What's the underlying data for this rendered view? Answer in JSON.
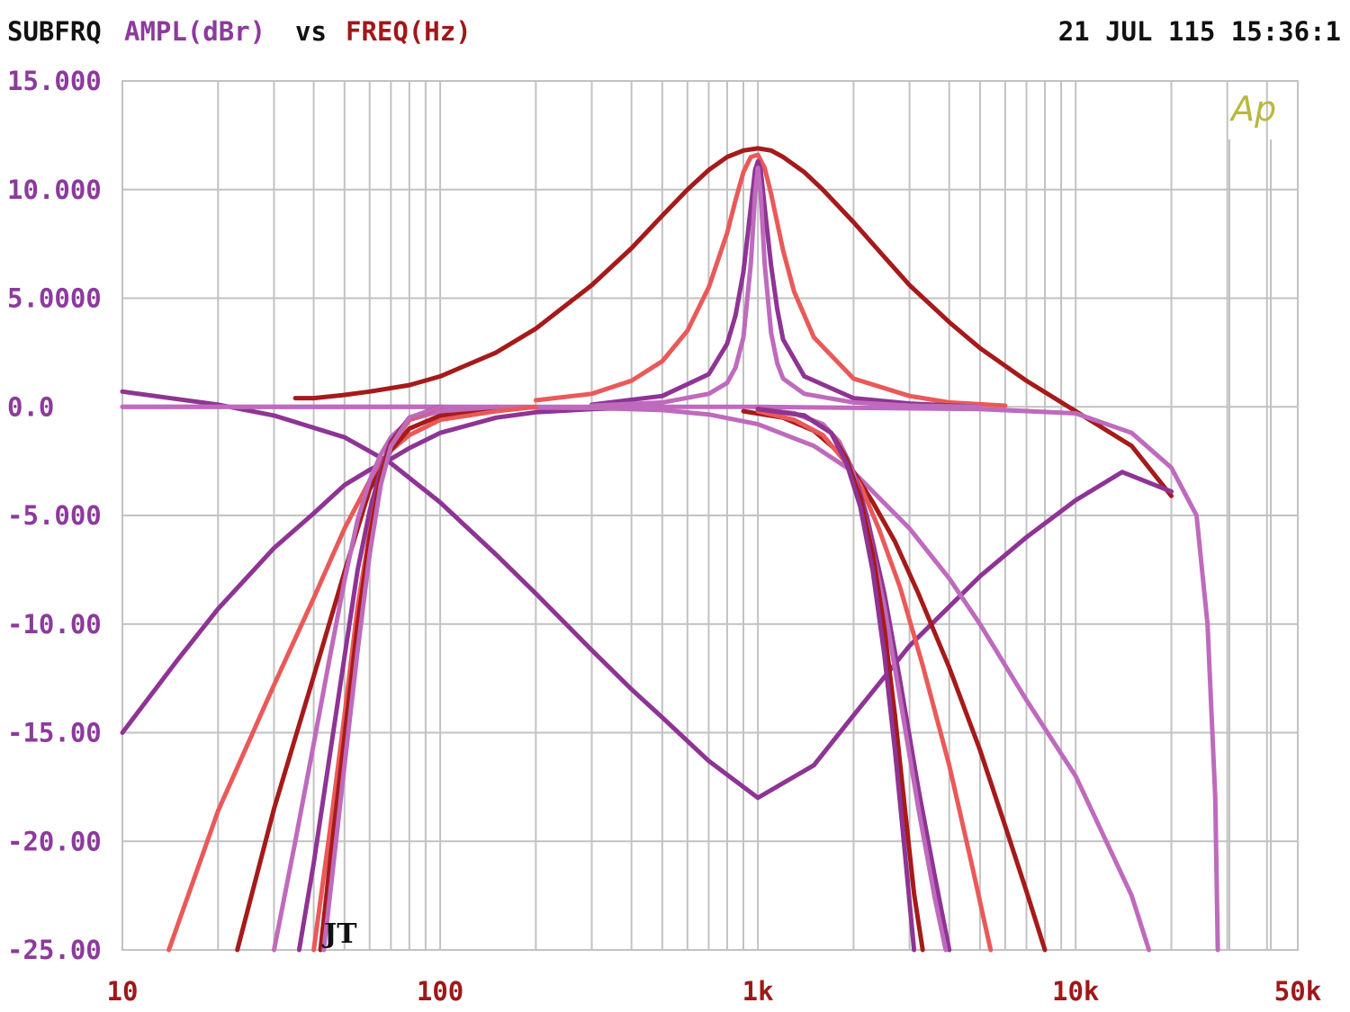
{
  "header": {
    "program": "SUBFRQ",
    "y_quantity": "AMPL(dBr)",
    "vs": "vs",
    "x_quantity": "FREQ(Hz)",
    "timestamp": "21 JUL 115 15:36:1"
  },
  "logo_text": "Ap",
  "cursor_mark": "JT",
  "colors": {
    "y_axis_text": "#8c3a9c",
    "x_axis_text": "#a01818",
    "grid": "#c2c2c2",
    "logo": "#b8b840"
  },
  "chart_data": {
    "type": "line",
    "title": "SUBFRQ AMPL(dBr) vs FREQ(Hz)",
    "xlabel": "FREQ(Hz)",
    "ylabel": "AMPL(dBr)",
    "x_scale": "log",
    "xlim": [
      10,
      50000
    ],
    "ylim": [
      -25,
      15
    ],
    "grid": true,
    "y_ticks": [
      {
        "value": 15,
        "label": "15.000"
      },
      {
        "value": 10,
        "label": "10.000"
      },
      {
        "value": 5,
        "label": "5.0000"
      },
      {
        "value": 0,
        "label": "0.0"
      },
      {
        "value": -5,
        "label": "-5.000"
      },
      {
        "value": -10,
        "label": "-10.00"
      },
      {
        "value": -15,
        "label": "-15.00"
      },
      {
        "value": -20,
        "label": "-20.00"
      },
      {
        "value": -25,
        "label": "-25.00"
      }
    ],
    "x_ticks": [
      {
        "value": 10,
        "label": "10"
      },
      {
        "value": 100,
        "label": "100"
      },
      {
        "value": 1000,
        "label": "1k"
      },
      {
        "value": 10000,
        "label": "10k"
      },
      {
        "value": 50000,
        "label": "50k"
      }
    ],
    "series": [
      {
        "color": "#a51a1a",
        "x": [
          35,
          40,
          50,
          60,
          80,
          100,
          150,
          200,
          300,
          400,
          500,
          600,
          700,
          800,
          900,
          1000,
          1100,
          1200,
          1400,
          1600,
          2000,
          2500,
          3000,
          4000,
          5000,
          7000,
          10000,
          15000,
          20000
        ],
        "y": [
          0.4,
          0.4,
          0.55,
          0.7,
          1.0,
          1.4,
          2.5,
          3.6,
          5.6,
          7.3,
          8.8,
          10.0,
          10.9,
          11.5,
          11.8,
          11.9,
          11.8,
          11.5,
          10.8,
          10.0,
          8.5,
          6.9,
          5.6,
          3.9,
          2.7,
          1.2,
          -0.2,
          -1.8,
          -4.1
        ]
      },
      {
        "color": "#ea5959",
        "x": [
          200,
          300,
          400,
          500,
          600,
          700,
          800,
          850,
          900,
          950,
          1000,
          1050,
          1100,
          1200,
          1300,
          1500,
          2000,
          3000,
          4000,
          6000
        ],
        "y": [
          0.3,
          0.6,
          1.2,
          2.1,
          3.5,
          5.5,
          8.0,
          9.5,
          10.8,
          11.5,
          11.6,
          11.0,
          9.8,
          7.2,
          5.3,
          3.2,
          1.3,
          0.5,
          0.2,
          0.05
        ]
      },
      {
        "color": "#8e3494",
        "x": [
          300,
          500,
          700,
          800,
          850,
          900,
          950,
          980,
          1000,
          1020,
          1050,
          1100,
          1150,
          1200,
          1400,
          2000,
          3000,
          5000
        ],
        "y": [
          0.1,
          0.5,
          1.5,
          2.9,
          4.2,
          6.2,
          9.2,
          10.9,
          11.3,
          10.9,
          9.2,
          6.5,
          4.5,
          3.1,
          1.4,
          0.4,
          0.15,
          0.0
        ]
      },
      {
        "color": "#be6abd",
        "x": [
          300,
          500,
          700,
          800,
          850,
          900,
          950,
          980,
          1000,
          1020,
          1050,
          1100,
          1150,
          1200,
          1400,
          2000,
          3000,
          5000
        ],
        "y": [
          0.05,
          0.2,
          0.6,
          1.1,
          1.8,
          3.2,
          6.6,
          9.8,
          11.0,
          9.8,
          6.6,
          3.4,
          2.0,
          1.3,
          0.6,
          0.2,
          0.05,
          0.0
        ]
      },
      {
        "color": "#8e3494",
        "x": [
          10,
          20,
          30,
          50,
          70,
          100,
          150,
          200,
          300,
          400,
          500,
          700,
          1000,
          1500,
          2000,
          3000,
          5000,
          7000,
          10000,
          14000,
          20000
        ],
        "y": [
          0.7,
          0.1,
          -0.4,
          -1.4,
          -2.6,
          -4.4,
          -6.8,
          -8.6,
          -11.2,
          -13.0,
          -14.3,
          -16.3,
          -18.0,
          -16.5,
          -14.2,
          -11.0,
          -7.8,
          -6.0,
          -4.3,
          -3.0,
          -3.9
        ]
      },
      {
        "color": "#8e3494",
        "x": [
          10,
          15,
          20,
          30,
          40,
          50,
          60,
          70,
          80,
          100,
          150,
          200,
          300,
          400,
          500
        ],
        "y": [
          -15.0,
          -11.6,
          -9.3,
          -6.5,
          -4.9,
          -3.6,
          -2.9,
          -2.4,
          -1.9,
          -1.2,
          -0.5,
          -0.25,
          -0.1,
          -0.05,
          0.0
        ]
      },
      {
        "color": "#be6abd",
        "x": [
          10,
          50,
          100,
          300,
          500,
          700,
          1000,
          1500,
          2000,
          3000,
          4000,
          5000,
          7000,
          10000,
          15000,
          17000
        ],
        "y": [
          0.0,
          0.0,
          0.0,
          -0.05,
          -0.15,
          -0.35,
          -0.8,
          -1.8,
          -3.0,
          -5.6,
          -7.9,
          -10.0,
          -13.5,
          -17.0,
          -22.5,
          -25.0
        ]
      },
      {
        "color": "#be6abd",
        "x": [
          10,
          100,
          1000,
          5000,
          10000,
          15000,
          20000,
          24000,
          26000,
          27500,
          28000
        ],
        "y": [
          0.0,
          0.0,
          0.0,
          -0.1,
          -0.3,
          -1.2,
          -2.8,
          -5.0,
          -10.0,
          -18.0,
          -25.0
        ]
      },
      {
        "color": "#ea5959",
        "x": [
          14,
          20,
          30,
          40,
          50,
          60,
          65,
          70,
          80,
          100,
          150,
          200
        ],
        "y": [
          -25.0,
          -18.6,
          -12.8,
          -8.8,
          -5.6,
          -3.4,
          -2.6,
          -2.0,
          -1.3,
          -0.6,
          -0.2,
          0.0
        ]
      },
      {
        "color": "#a51a1a",
        "x": [
          23,
          30,
          40,
          50,
          55,
          60,
          65,
          70,
          80,
          100,
          150
        ],
        "y": [
          -25.0,
          -18.5,
          -12.4,
          -7.6,
          -5.6,
          -3.8,
          -2.9,
          -2.0,
          -1.0,
          -0.4,
          0.0
        ]
      },
      {
        "color": "#be6abd",
        "x": [
          30,
          35,
          40,
          45,
          50,
          55,
          60,
          65,
          70,
          80,
          100,
          150
        ],
        "y": [
          -25.0,
          -20.0,
          -15.5,
          -11.5,
          -8.0,
          -5.2,
          -3.4,
          -2.2,
          -1.4,
          -0.6,
          -0.2,
          0.0
        ]
      },
      {
        "color": "#8e3494",
        "x": [
          36,
          40,
          45,
          50,
          55,
          60,
          65,
          70,
          80,
          100
        ],
        "y": [
          -25.0,
          -21.0,
          -16.0,
          -11.5,
          -7.5,
          -4.8,
          -2.9,
          -1.6,
          -0.5,
          0.0
        ]
      },
      {
        "color": "#ea5959",
        "x": [
          40,
          45,
          50,
          55,
          60,
          65,
          70,
          80,
          100
        ],
        "y": [
          -25.0,
          -19.5,
          -14.2,
          -9.2,
          -5.8,
          -3.2,
          -1.8,
          -0.6,
          0.0
        ]
      },
      {
        "color": "#a51a1a",
        "x": [
          42,
          45,
          50,
          55,
          60,
          65,
          70,
          80,
          100
        ],
        "y": [
          -25.0,
          -21.0,
          -15.2,
          -10.0,
          -6.0,
          -3.2,
          -1.7,
          -0.5,
          0.0
        ]
      },
      {
        "color": "#be6abd",
        "x": [
          43,
          45,
          50,
          55,
          60,
          65,
          70,
          80,
          100
        ],
        "y": [
          -25.0,
          -22.5,
          -16.5,
          -11.2,
          -6.8,
          -3.6,
          -1.8,
          -0.5,
          0.0
        ]
      },
      {
        "color": "#a51a1a",
        "x": [
          900,
          1200,
          1500,
          1800,
          2000,
          2300,
          2700,
          3200,
          4000,
          5000,
          6000,
          7000,
          8000
        ],
        "y": [
          -0.2,
          -0.5,
          -1.1,
          -2.1,
          -3.0,
          -4.4,
          -6.2,
          -8.6,
          -12.0,
          -15.8,
          -19.3,
          -22.3,
          -25.0
        ]
      },
      {
        "color": "#ea5959",
        "x": [
          1000,
          1300,
          1600,
          1900,
          2100,
          2400,
          2800,
          3300,
          4000,
          4700,
          5400
        ],
        "y": [
          -0.2,
          -0.6,
          -1.3,
          -2.6,
          -3.6,
          -5.6,
          -8.3,
          -11.9,
          -16.5,
          -21.0,
          -25.0
        ]
      },
      {
        "color": "#8e3494",
        "x": [
          1000,
          1300,
          1600,
          1800,
          2000,
          2200,
          2500,
          2800,
          3200,
          3600,
          4000
        ],
        "y": [
          -0.1,
          -0.3,
          -0.8,
          -1.6,
          -3.0,
          -5.0,
          -8.6,
          -12.6,
          -17.6,
          -21.6,
          -25.0
        ]
      },
      {
        "color": "#be6abd",
        "x": [
          1000,
          1300,
          1600,
          1800,
          2000,
          2200,
          2500,
          2800,
          3200,
          3600,
          3900
        ],
        "y": [
          -0.1,
          -0.3,
          -0.8,
          -1.6,
          -3.1,
          -5.4,
          -9.2,
          -13.4,
          -18.5,
          -22.6,
          -25.0
        ]
      },
      {
        "color": "#a51a1a",
        "x": [
          1000,
          1400,
          1700,
          1900,
          2100,
          2300,
          2500,
          2700,
          2900,
          3100,
          3300
        ],
        "y": [
          -0.1,
          -0.4,
          -1.2,
          -2.4,
          -4.2,
          -6.8,
          -10.2,
          -14.2,
          -18.5,
          -22.4,
          -25.0
        ]
      },
      {
        "color": "#8e3494",
        "x": [
          1000,
          1400,
          1700,
          1900,
          2100,
          2300,
          2500,
          2700,
          2900,
          3100
        ],
        "y": [
          -0.1,
          -0.4,
          -1.2,
          -2.6,
          -4.6,
          -7.6,
          -11.4,
          -15.8,
          -20.5,
          -25.0
        ]
      }
    ]
  }
}
